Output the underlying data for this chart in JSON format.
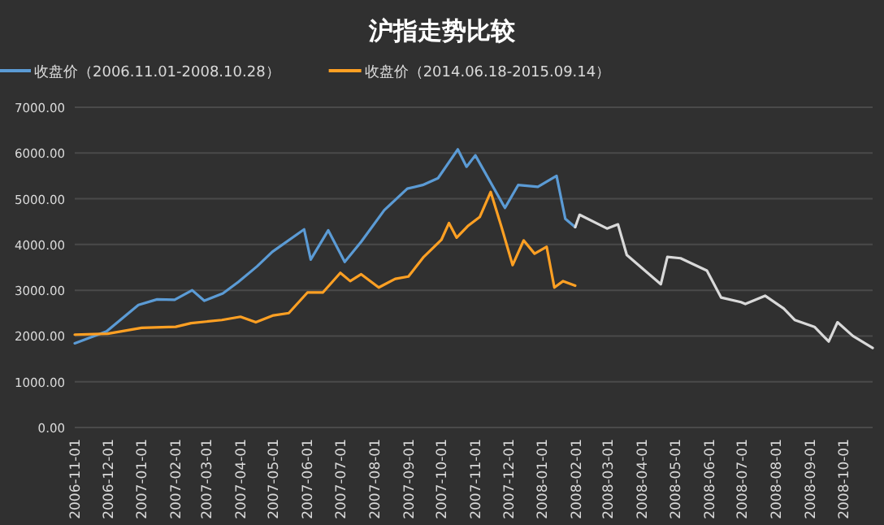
{
  "chart_data": {
    "type": "line",
    "title": "沪指走势比较",
    "legend": "top",
    "grid": "y",
    "xlim": [
      "2006-11-01",
      "2008-10-28"
    ],
    "ylim": [
      0,
      7000
    ],
    "yticks": [
      {
        "value": 0,
        "label": "0.00"
      },
      {
        "value": 1000,
        "label": "1000.00"
      },
      {
        "value": 2000,
        "label": "2000.00"
      },
      {
        "value": 3000,
        "label": "3000.00"
      },
      {
        "value": 4000,
        "label": "4000.00"
      },
      {
        "value": 5000,
        "label": "5000.00"
      },
      {
        "value": 6000,
        "label": "6000.00"
      },
      {
        "value": 7000,
        "label": "7000.00"
      }
    ],
    "xticks": [
      "2006-11-01",
      "2006-12-01",
      "2007-01-01",
      "2007-02-01",
      "2007-03-01",
      "2007-04-01",
      "2007-05-01",
      "2007-06-01",
      "2007-07-01",
      "2007-08-01",
      "2007-09-01",
      "2007-10-01",
      "2007-11-01",
      "2007-12-01",
      "2008-01-01",
      "2008-02-01",
      "2008-03-01",
      "2008-04-01",
      "2008-05-01",
      "2008-06-01",
      "2008-07-01",
      "2008-08-01",
      "2008-09-01",
      "2008-10-01"
    ],
    "series": [
      {
        "name": "收盘价（2006.11.01-2008.10.28）",
        "color": "#5b9bd5",
        "x": [
          "2006-11-01",
          "2006-11-30",
          "2006-12-29",
          "2007-01-15",
          "2007-01-31",
          "2007-02-16",
          "2007-02-27",
          "2007-03-16",
          "2007-03-30",
          "2007-04-16",
          "2007-04-30",
          "2007-05-29",
          "2007-06-04",
          "2007-06-20",
          "2007-07-05",
          "2007-07-20",
          "2007-08-10",
          "2007-08-31",
          "2007-09-14",
          "2007-09-28",
          "2007-10-16",
          "2007-10-24",
          "2007-11-01",
          "2007-11-28",
          "2007-12-10",
          "2007-12-28",
          "2008-01-14",
          "2008-01-22",
          "2008-01-31"
        ],
        "values": [
          1840,
          2100,
          2680,
          2800,
          2790,
          3000,
          2770,
          2930,
          3180,
          3520,
          3840,
          4330,
          3670,
          4310,
          3620,
          4060,
          4750,
          5220,
          5300,
          5450,
          6080,
          5700,
          5950,
          4800,
          5300,
          5260,
          5500,
          4560,
          4380
        ]
      },
      {
        "color": "#d9d9d9",
        "x": [
          "2008-01-31",
          "2008-02-04",
          "2008-02-29",
          "2008-03-10",
          "2008-03-18",
          "2008-04-18",
          "2008-04-24",
          "2008-05-06",
          "2008-05-30",
          "2008-06-12",
          "2008-06-30",
          "2008-07-04",
          "2008-07-22",
          "2008-08-08",
          "2008-08-18",
          "2008-09-05",
          "2008-09-18",
          "2008-09-26",
          "2008-10-10",
          "2008-10-28"
        ],
        "values": [
          4380,
          4650,
          4350,
          4440,
          3770,
          3130,
          3730,
          3700,
          3430,
          2840,
          2740,
          2700,
          2880,
          2600,
          2350,
          2200,
          1880,
          2300,
          2000,
          1740
        ]
      },
      {
        "name": "收盘价（2014.06.18-2015.09.14）",
        "color": "#ffa023",
        "x": [
          "2006-11-01",
          "2006-12-01",
          "2007-01-01",
          "2007-02-01",
          "2007-02-15",
          "2007-03-15",
          "2007-04-01",
          "2007-04-15",
          "2007-05-01",
          "2007-05-15",
          "2007-06-01",
          "2007-06-15",
          "2007-07-01",
          "2007-07-10",
          "2007-07-20",
          "2007-08-05",
          "2007-08-20",
          "2007-09-01",
          "2007-09-15",
          "2007-10-01",
          "2007-10-08",
          "2007-10-15",
          "2007-10-25",
          "2007-11-05",
          "2007-11-15",
          "2007-11-25",
          "2007-12-05",
          "2007-12-15",
          "2007-12-25",
          "2008-01-05",
          "2008-01-12",
          "2008-01-20",
          "2008-01-31"
        ],
        "values": [
          2030,
          2050,
          2180,
          2200,
          2280,
          2350,
          2420,
          2300,
          2450,
          2500,
          2950,
          2950,
          3380,
          3200,
          3350,
          3060,
          3250,
          3300,
          3730,
          4100,
          4470,
          4150,
          4400,
          4600,
          5150,
          4370,
          3550,
          4090,
          3800,
          3950,
          3060,
          3200,
          3100
        ]
      }
    ]
  }
}
